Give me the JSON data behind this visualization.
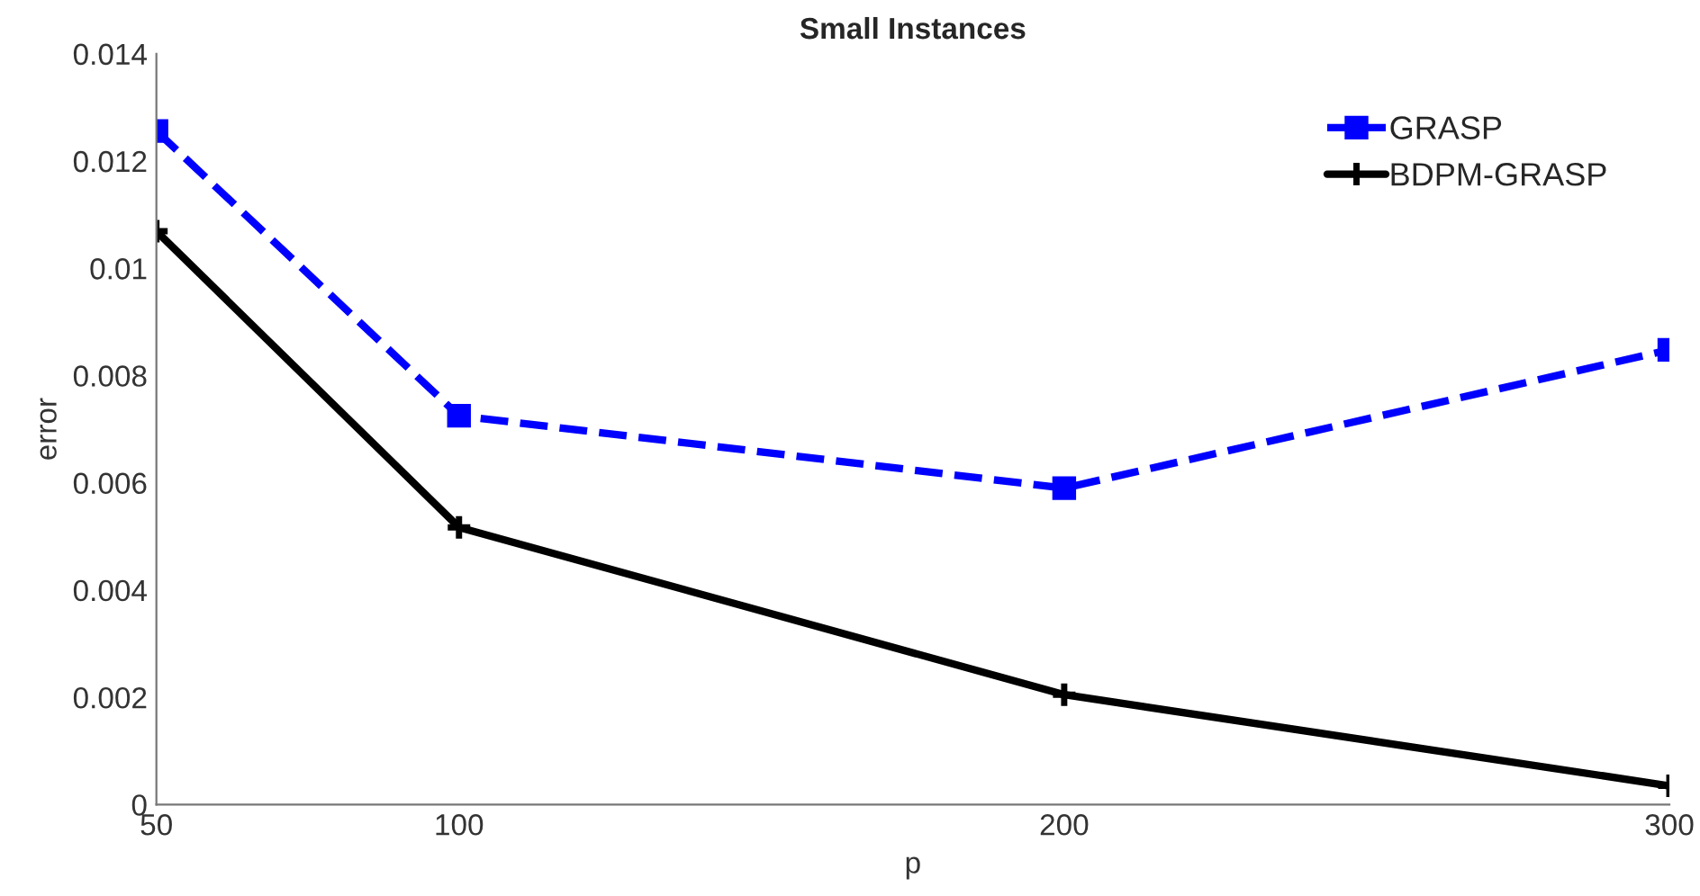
{
  "chart_data": {
    "type": "line",
    "title": "Small Instances",
    "xlabel": "p",
    "ylabel": "error",
    "x": [
      50,
      100,
      200,
      300
    ],
    "series": [
      {
        "name": "GRASP",
        "color": "#0000ff",
        "values": [
          0.01256,
          0.00725,
          0.0059,
          0.00848
        ],
        "marker": "square",
        "line_style": "dashed"
      },
      {
        "name": "BDPM-GRASP",
        "color": "#000000",
        "values": [
          0.01069,
          0.00517,
          0.00205,
          0.00035
        ],
        "marker": "cross",
        "line_style": "solid"
      }
    ],
    "xlim": [
      50,
      300
    ],
    "xticks": [
      50,
      100,
      200,
      300
    ],
    "ylim": [
      0,
      0.014
    ],
    "yticks": [
      0,
      0.002,
      0.004,
      0.006,
      0.008,
      0.01,
      0.012,
      0.014
    ],
    "grid": false,
    "legend": "top right"
  }
}
